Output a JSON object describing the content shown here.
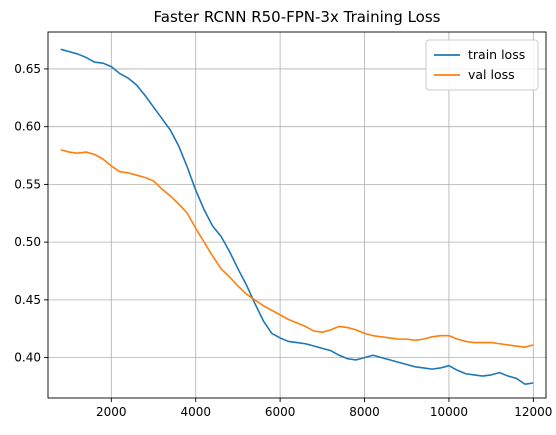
{
  "chart_data": {
    "type": "line",
    "title": "Faster RCNN R50-FPN-3x Training Loss",
    "xlabel": "",
    "ylabel": "",
    "xlim": [
      500,
      12300
    ],
    "ylim": [
      0.365,
      0.682
    ],
    "xticks": [
      2000,
      4000,
      6000,
      8000,
      10000,
      12000
    ],
    "yticks": [
      0.4,
      0.45,
      0.5,
      0.55,
      0.6,
      0.65
    ],
    "grid": true,
    "legend_position": "top-right",
    "series": [
      {
        "name": "train loss",
        "color": "#1f77b4",
        "x": [
          800,
          1000,
          1200,
          1400,
          1600,
          1800,
          2000,
          2200,
          2400,
          2600,
          2800,
          3000,
          3200,
          3400,
          3600,
          3800,
          4000,
          4200,
          4400,
          4600,
          4800,
          5000,
          5200,
          5400,
          5600,
          5800,
          6000,
          6200,
          6400,
          6600,
          6800,
          7000,
          7200,
          7400,
          7600,
          7800,
          8000,
          8200,
          8400,
          8600,
          8800,
          9000,
          9200,
          9400,
          9600,
          9800,
          10000,
          10200,
          10400,
          10600,
          10800,
          11000,
          11200,
          11400,
          11600,
          11800,
          12000
        ],
        "values": [
          0.667,
          0.665,
          0.663,
          0.66,
          0.656,
          0.655,
          0.652,
          0.646,
          0.642,
          0.636,
          0.627,
          0.617,
          0.607,
          0.597,
          0.583,
          0.565,
          0.545,
          0.528,
          0.514,
          0.505,
          0.492,
          0.477,
          0.463,
          0.447,
          0.432,
          0.421,
          0.417,
          0.414,
          0.413,
          0.412,
          0.41,
          0.408,
          0.406,
          0.402,
          0.399,
          0.398,
          0.4,
          0.402,
          0.4,
          0.398,
          0.396,
          0.394,
          0.392,
          0.391,
          0.39,
          0.391,
          0.393,
          0.389,
          0.386,
          0.385,
          0.384,
          0.385,
          0.387,
          0.384,
          0.382,
          0.377,
          0.378
        ]
      },
      {
        "name": "val loss",
        "color": "#ff7f0e",
        "x": [
          800,
          1000,
          1200,
          1400,
          1600,
          1800,
          2000,
          2200,
          2400,
          2600,
          2800,
          3000,
          3200,
          3400,
          3600,
          3800,
          4000,
          4200,
          4400,
          4600,
          4800,
          5000,
          5200,
          5400,
          5600,
          5800,
          6000,
          6200,
          6400,
          6600,
          6800,
          7000,
          7200,
          7400,
          7600,
          7800,
          8000,
          8200,
          8400,
          8600,
          8800,
          9000,
          9200,
          9400,
          9600,
          9800,
          10000,
          10200,
          10400,
          10600,
          10800,
          11000,
          11200,
          11400,
          11600,
          11800,
          12000
        ],
        "values": [
          0.58,
          0.578,
          0.577,
          0.578,
          0.576,
          0.572,
          0.566,
          0.561,
          0.56,
          0.558,
          0.556,
          0.553,
          0.546,
          0.54,
          0.533,
          0.525,
          0.512,
          0.5,
          0.488,
          0.477,
          0.47,
          0.462,
          0.455,
          0.45,
          0.445,
          0.441,
          0.437,
          0.433,
          0.43,
          0.427,
          0.423,
          0.422,
          0.424,
          0.427,
          0.426,
          0.424,
          0.421,
          0.419,
          0.418,
          0.417,
          0.416,
          0.416,
          0.415,
          0.416,
          0.418,
          0.419,
          0.419,
          0.416,
          0.414,
          0.413,
          0.413,
          0.413,
          0.412,
          0.411,
          0.41,
          0.409,
          0.411
        ]
      }
    ]
  }
}
